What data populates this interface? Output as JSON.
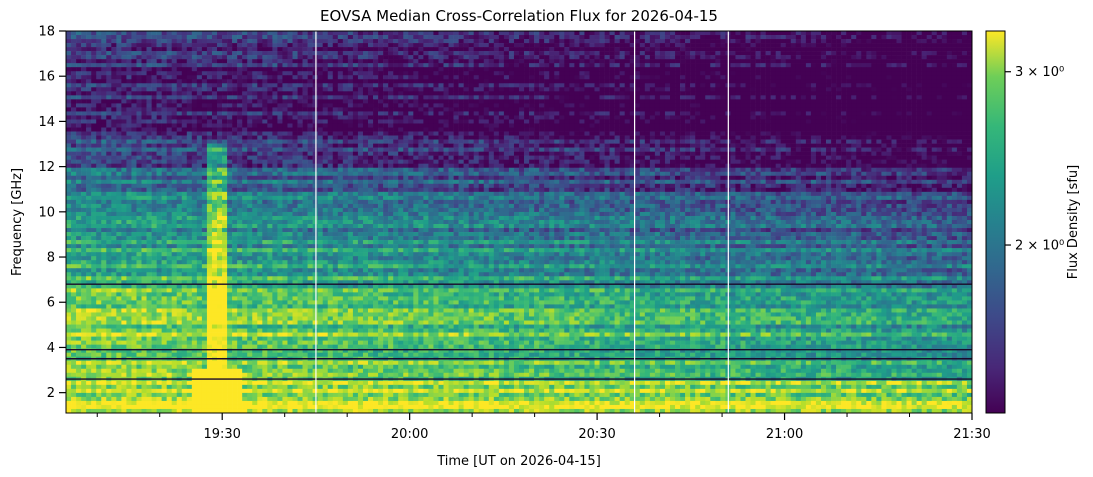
{
  "chart_data": {
    "type": "heatmap",
    "title": "EOVSA Median Cross-Correlation Flux for 2026-04-15",
    "xlabel": "Time [UT on 2026-04-15]",
    "ylabel": "Frequency [GHz]",
    "x_range": [
      "19:05",
      "21:30"
    ],
    "xlim_minutes": [
      1145,
      1290
    ],
    "ylim": [
      1.1,
      18
    ],
    "x_ticks": [
      {
        "minutes": 1170,
        "label": "19:30"
      },
      {
        "minutes": 1200,
        "label": "20:00"
      },
      {
        "minutes": 1230,
        "label": "20:30"
      },
      {
        "minutes": 1260,
        "label": "21:00"
      },
      {
        "minutes": 1290,
        "label": "21:30"
      }
    ],
    "x_minor_tick_minutes": [
      1150,
      1160,
      1180,
      1190,
      1210,
      1220,
      1240,
      1250,
      1270,
      1280
    ],
    "y_ticks": [
      {
        "value": 2,
        "label": "2"
      },
      {
        "value": 4,
        "label": "4"
      },
      {
        "value": 6,
        "label": "6"
      },
      {
        "value": 8,
        "label": "8"
      },
      {
        "value": 10,
        "label": "10"
      },
      {
        "value": 12,
        "label": "12"
      },
      {
        "value": 14,
        "label": "14"
      },
      {
        "value": 16,
        "label": "16"
      },
      {
        "value": 18,
        "label": "18"
      }
    ],
    "colormap": "viridis",
    "colorbar": {
      "label": "Flux Density [sfu]",
      "scale": "log",
      "range": [
        1.35,
        3.3
      ],
      "ticks": [
        {
          "value": 3,
          "label": "3 × 10⁰"
        },
        {
          "value": 2,
          "label": "2 × 10⁰"
        }
      ]
    },
    "intensity_profile_by_frequency": [
      {
        "freq_ghz": 1.5,
        "level": 0.95
      },
      {
        "freq_ghz": 2.2,
        "level": 0.9
      },
      {
        "freq_ghz": 3.0,
        "level": 0.85
      },
      {
        "freq_ghz": 4.5,
        "level": 0.85
      },
      {
        "freq_ghz": 6.0,
        "level": 0.8
      },
      {
        "freq_ghz": 8.0,
        "level": 0.62
      },
      {
        "freq_ghz": 10.0,
        "level": 0.5
      },
      {
        "freq_ghz": 12.0,
        "level": 0.3
      },
      {
        "freq_ghz": 14.0,
        "level": 0.12
      },
      {
        "freq_ghz": 16.0,
        "level": 0.1
      },
      {
        "freq_ghz": 18.0,
        "level": 0.22
      }
    ],
    "time_trend": "flux decreases from 19:05 toward 21:30",
    "flare_burst_time": "19:29",
    "vertical_data_gaps": [
      "19:45",
      "20:36",
      "20:51"
    ]
  }
}
